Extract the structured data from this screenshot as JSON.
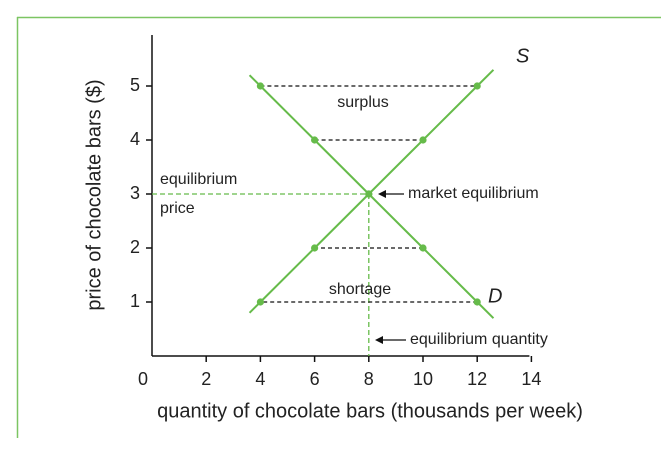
{
  "chart_data": {
    "type": "line",
    "xlabel": "quantity of chocolate bars (thousands per week)",
    "ylabel": "price of chocolate bars ($)",
    "xlim": [
      0,
      14
    ],
    "ylim": [
      0,
      6
    ],
    "xticks": [
      0,
      2,
      4,
      6,
      8,
      10,
      12,
      14
    ],
    "yticks": [
      1,
      2,
      3,
      4,
      5
    ],
    "series": [
      {
        "name": "S",
        "color": "#66bb4a",
        "x": [
          4,
          6,
          8,
          10,
          12
        ],
        "values": [
          1,
          2,
          3,
          4,
          5
        ]
      },
      {
        "name": "D",
        "color": "#66bb4a",
        "x": [
          4,
          6,
          8,
          10,
          12
        ],
        "values": [
          5,
          4,
          3,
          2,
          1
        ]
      }
    ],
    "equilibrium": {
      "x": 8,
      "y": 3
    },
    "annotations": {
      "surplus": "surplus",
      "shortage": "shortage",
      "equilibrium_price": [
        "equilibrium",
        "price"
      ],
      "market_equilibrium": "market equilibrium",
      "equilibrium_quantity": "equilibrium quantity"
    }
  }
}
